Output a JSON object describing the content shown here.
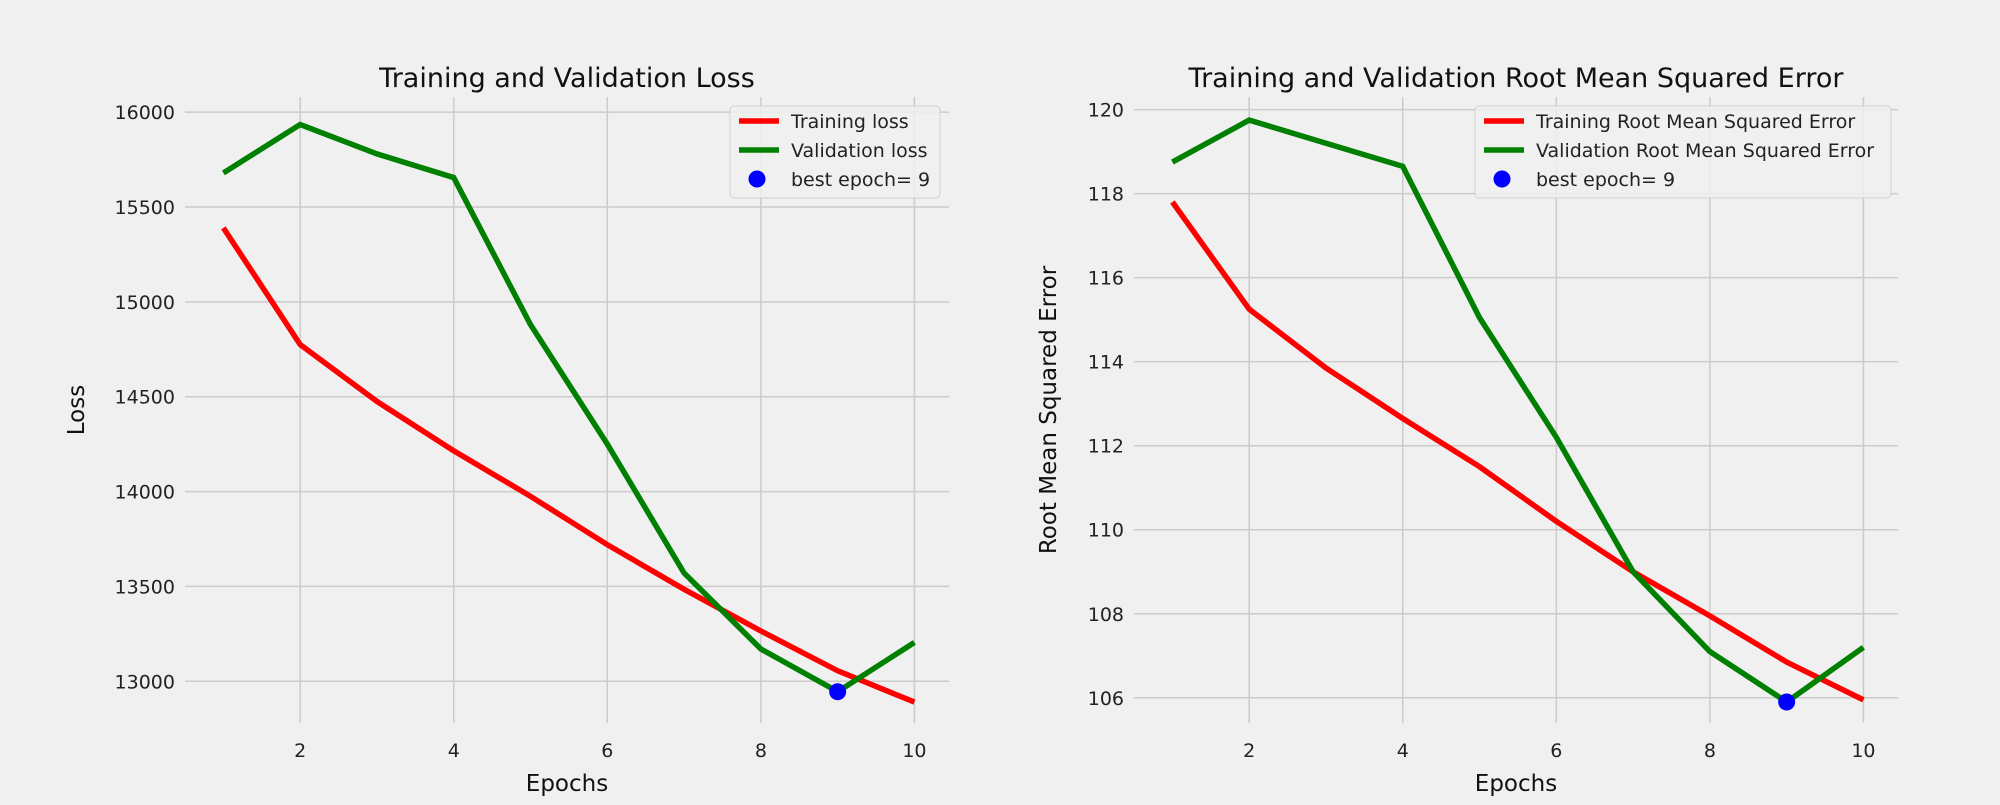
{
  "colors": {
    "background": "#f0f0f0",
    "grid": "#cbcbcb",
    "training": "#ff0000",
    "validation": "#008000",
    "best": "#0000ff",
    "legend_bg": "#f0f0f0",
    "legend_border": "#d0d0d0"
  },
  "chart_data": [
    {
      "type": "line",
      "title": "Training and Validation Loss",
      "xlabel": "Epochs",
      "ylabel": "Loss",
      "x": [
        1,
        2,
        3,
        4,
        5,
        6,
        7,
        8,
        9,
        10
      ],
      "xlim": [
        0.5,
        10.45
      ],
      "ylim": [
        12780,
        16080
      ],
      "xticks": [
        2,
        4,
        6,
        8,
        10
      ],
      "yticks": [
        13000,
        13500,
        14000,
        14500,
        15000,
        15500,
        16000
      ],
      "grid": true,
      "legend": "top-right",
      "series": [
        {
          "name": "Training loss",
          "color": "#ff0000",
          "values": [
            15390,
            14775,
            14475,
            14215,
            13975,
            13720,
            13485,
            13265,
            13055,
            12890
          ]
        },
        {
          "name": "Validation loss",
          "color": "#008000",
          "values": [
            15680,
            15935,
            15780,
            15655,
            14880,
            14250,
            13570,
            13170,
            12945,
            13205
          ]
        }
      ],
      "best": {
        "name": "best epoch= 9",
        "x": 9,
        "y": 12945
      }
    },
    {
      "type": "line",
      "title": "Training and Validation Root Mean Squared Error",
      "xlabel": "Epochs",
      "ylabel": "Root Mean Squared Error",
      "x": [
        1,
        2,
        3,
        4,
        5,
        6,
        7,
        8,
        9,
        10
      ],
      "xlim": [
        0.5,
        10.45
      ],
      "ylim": [
        105.4,
        120.3
      ],
      "xticks": [
        2,
        4,
        6,
        8,
        10
      ],
      "yticks": [
        106,
        108,
        110,
        112,
        114,
        116,
        118,
        120
      ],
      "grid": true,
      "legend": "top-right",
      "series": [
        {
          "name": "Training Root Mean Squared Error",
          "color": "#ff0000",
          "values": [
            117.8,
            115.25,
            113.85,
            112.65,
            111.5,
            110.2,
            109.0,
            107.95,
            106.85,
            105.95
          ]
        },
        {
          "name": "Validation Root Mean Squared Error",
          "color": "#008000",
          "values": [
            118.75,
            119.75,
            119.2,
            118.65,
            115.05,
            112.2,
            109.0,
            107.1,
            105.9,
            107.2
          ]
        }
      ],
      "best": {
        "name": "best epoch= 9",
        "x": 9,
        "y": 105.9
      }
    }
  ]
}
